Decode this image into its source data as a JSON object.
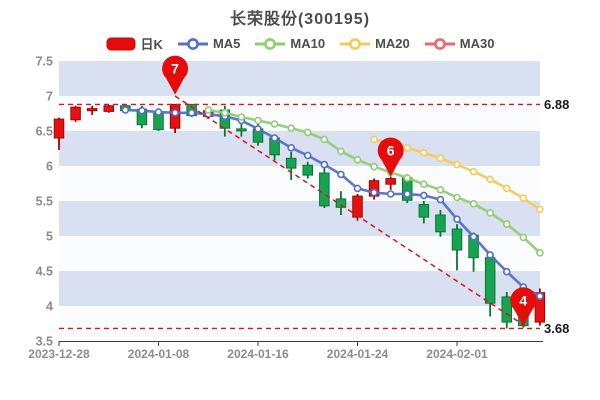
{
  "header": {
    "title": "长荣股份(300195)"
  },
  "legend": {
    "items": [
      {
        "label": "日K",
        "kind": "candle",
        "color": "#e60c0c"
      },
      {
        "label": "MA5",
        "kind": "line",
        "color": "#5470c6"
      },
      {
        "label": "MA10",
        "kind": "line",
        "color": "#91cc75"
      },
      {
        "label": "MA20",
        "kind": "line",
        "color": "#fac858"
      },
      {
        "label": "MA30",
        "kind": "line",
        "color": "#ee6666"
      }
    ]
  },
  "colors": {
    "up_fill": "#e51212",
    "up_stroke": "#9c0505",
    "down_fill": "#16a452",
    "down_stroke": "#0b7434",
    "ma5": "#5470c6",
    "ma10": "#91cc75",
    "ma20": "#fac858",
    "ma30": "#ee6666",
    "band": "#d8e0f1",
    "band_alt": "#fbfcfe",
    "dashed": "#e01212",
    "balloon": "#e60c0c",
    "axis_label": "#8c8c8c",
    "axis_line": "#3c3c3c",
    "annotation_text": "#1a1a1a",
    "title_text": "#4d4d4d"
  },
  "chart_data": {
    "type": "candlestick",
    "title": "长荣股份(300195)",
    "ylim": [
      3.5,
      7.5
    ],
    "y_tick_labels": [
      "7.5",
      "7",
      "6.5",
      "6",
      "5.5",
      "5",
      "4.5",
      "4",
      "3.5"
    ],
    "y_tick_values": [
      7.5,
      7.0,
      6.5,
      6.0,
      5.5,
      5.0,
      4.5,
      4.0,
      3.5
    ],
    "x_tick_labels": [
      "2023-12-28",
      "2024-01-08",
      "2024-01-16",
      "2024-01-24",
      "2024-02-01"
    ],
    "x_tick_indices": [
      0,
      6,
      12,
      18,
      24
    ],
    "grid_bands": true,
    "legend_position": "top",
    "candles_ohlc_format": "[open, close, low, high]",
    "candles": [
      [
        6.4,
        6.67,
        6.23,
        6.69
      ],
      [
        6.66,
        6.84,
        6.63,
        6.86
      ],
      [
        6.79,
        6.82,
        6.73,
        6.86
      ],
      [
        6.78,
        6.86,
        6.76,
        6.87
      ],
      [
        6.86,
        6.79,
        6.77,
        6.87
      ],
      [
        6.81,
        6.59,
        6.54,
        6.86
      ],
      [
        6.75,
        6.52,
        6.5,
        6.78
      ],
      [
        6.54,
        6.88,
        6.47,
        6.88
      ],
      [
        6.88,
        6.72,
        6.7,
        6.88
      ],
      [
        6.71,
        6.79,
        6.67,
        6.85
      ],
      [
        6.8,
        6.54,
        6.42,
        6.86
      ],
      [
        6.53,
        6.51,
        6.42,
        6.61
      ],
      [
        6.53,
        6.34,
        6.29,
        6.6
      ],
      [
        6.4,
        6.16,
        6.08,
        6.43
      ],
      [
        6.11,
        5.97,
        5.8,
        6.2
      ],
      [
        6.01,
        5.87,
        5.82,
        6.06
      ],
      [
        5.9,
        5.43,
        5.4,
        5.97
      ],
      [
        5.53,
        5.41,
        5.3,
        5.64
      ],
      [
        5.27,
        5.57,
        5.22,
        5.6
      ],
      [
        5.57,
        5.79,
        5.52,
        5.82
      ],
      [
        5.74,
        5.82,
        5.66,
        5.85
      ],
      [
        5.83,
        5.51,
        5.47,
        5.88
      ],
      [
        5.45,
        5.27,
        5.18,
        5.5
      ],
      [
        5.3,
        5.06,
        4.99,
        5.37
      ],
      [
        5.1,
        4.8,
        4.51,
        5.17
      ],
      [
        5.01,
        4.69,
        4.49,
        5.05
      ],
      [
        4.69,
        4.04,
        3.85,
        4.76
      ],
      [
        4.13,
        3.77,
        3.68,
        4.2
      ],
      [
        3.9,
        3.72,
        3.69,
        3.95
      ],
      [
        3.77,
        4.19,
        3.72,
        4.25
      ]
    ],
    "ma_series": [
      {
        "name": "MA5",
        "color_key": "ma5",
        "start_index": 4,
        "values": [
          6.8,
          6.79,
          6.77,
          6.76,
          6.76,
          6.74,
          6.71,
          6.65,
          6.53,
          6.4,
          6.26,
          6.15,
          6.02,
          5.88,
          5.68,
          5.62,
          5.6,
          5.6,
          5.58,
          5.52,
          5.24,
          4.99,
          4.73,
          4.49,
          4.27,
          4.14
        ]
      },
      {
        "name": "MA10",
        "color_key": "ma10",
        "start_index": 9,
        "values": [
          6.8,
          6.76,
          6.7,
          6.65,
          6.6,
          6.54,
          6.48,
          6.38,
          6.21,
          6.09,
          5.99,
          5.91,
          5.83,
          5.74,
          5.66,
          5.55,
          5.46,
          5.33,
          5.17,
          4.98,
          4.76
        ]
      },
      {
        "name": "MA20",
        "color_key": "ma20",
        "start_index": 19,
        "values": [
          6.38,
          6.32,
          6.26,
          6.19,
          6.11,
          6.02,
          5.92,
          5.81,
          5.68,
          5.54,
          5.38
        ]
      }
    ],
    "high_label": {
      "text": "6.88",
      "price": 6.88
    },
    "low_label": {
      "text": "3.68",
      "price": 3.68
    },
    "trendline": {
      "from_index": 7,
      "from_price": 7.0,
      "to_index": 28.4,
      "to_price": 3.67
    },
    "markers": [
      {
        "index": 7,
        "label": "7",
        "anchor_price": 7.02
      },
      {
        "index": 20,
        "label": "6",
        "anchor_price": 5.85
      },
      {
        "index": 28,
        "label": "4",
        "anchor_price": 3.71
      }
    ]
  }
}
